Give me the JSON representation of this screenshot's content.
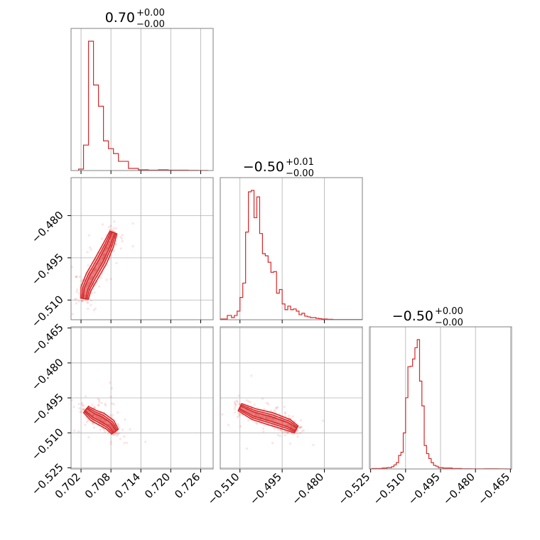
{
  "colors": {
    "series": "#d62728",
    "grid": "#b0b0b0",
    "frame": "#808080"
  },
  "chart_data": {
    "type": "corner",
    "grid": true,
    "parameters": [
      {
        "title_value": "0.70",
        "title_plus": "+0.00",
        "title_minus": "−0.00",
        "range": [
          0.7,
          0.7285
        ],
        "ticks": [
          0.702,
          0.708,
          0.714,
          0.72,
          0.726
        ],
        "tick_labels": [
          "0.702",
          "0.708",
          "0.714",
          "0.720",
          "0.726"
        ]
      },
      {
        "title_value": "−0.50",
        "title_plus": "+0.01",
        "title_minus": "−0.00",
        "range": [
          -0.517,
          -0.4665
        ],
        "ticks": [
          -0.51,
          -0.495,
          -0.48
        ],
        "tick_labels": [
          "−0.510",
          "−0.495",
          "−0.480"
        ]
      },
      {
        "title_value": "−0.50",
        "title_plus": "+0.00",
        "title_minus": "−0.00",
        "range": [
          -0.5255,
          -0.4645
        ],
        "ticks": [
          -0.525,
          -0.51,
          -0.495,
          -0.48,
          -0.465
        ],
        "tick_labels": [
          "−0.525",
          "−0.510",
          "−0.495",
          "−0.480",
          "−0.465"
        ]
      }
    ],
    "histograms": [
      {
        "param": 0,
        "bin_edges": [
          0.7015,
          0.7025,
          0.7035,
          0.7045,
          0.7055,
          0.7065,
          0.7075,
          0.7085,
          0.7095,
          0.7115,
          0.7135,
          0.7155,
          0.7175,
          0.7195,
          0.7215,
          0.7235,
          0.7255,
          0.7275
        ],
        "counts": [
          2,
          36,
          183,
          121,
          91,
          42,
          31,
          24,
          13,
          3,
          1,
          0.5,
          1,
          0.5,
          0.5,
          0.3,
          0.2
        ]
      },
      {
        "param": 1,
        "bin_edges": [
          -0.517,
          -0.5145,
          -0.513,
          -0.512,
          -0.511,
          -0.51,
          -0.509,
          -0.508,
          -0.507,
          -0.506,
          -0.505,
          -0.504,
          -0.503,
          -0.502,
          -0.501,
          -0.5,
          -0.499,
          -0.498,
          -0.497,
          -0.496,
          -0.495,
          -0.494,
          -0.493,
          -0.492,
          -0.491,
          -0.49,
          -0.489,
          -0.488,
          -0.487,
          -0.486,
          -0.485,
          -0.484,
          -0.483,
          -0.482,
          -0.481,
          -0.479,
          -0.477,
          -0.4665
        ],
        "counts": [
          1,
          6,
          3,
          6,
          12,
          31,
          51,
          122,
          178,
          180,
          142,
          171,
          120,
          92,
          89,
          80,
          66,
          67,
          37,
          42,
          22,
          14,
          19,
          14,
          15,
          12,
          7,
          9,
          5,
          4,
          3,
          3,
          2,
          1.5,
          1,
          0.6,
          0.3
        ]
      },
      {
        "param": 2,
        "bin_edges": [
          -0.5245,
          -0.52,
          -0.518,
          -0.516,
          -0.515,
          -0.514,
          -0.513,
          -0.512,
          -0.511,
          -0.51,
          -0.509,
          -0.508,
          -0.507,
          -0.506,
          -0.505,
          -0.504,
          -0.503,
          -0.502,
          -0.501,
          -0.5,
          -0.499,
          -0.498,
          -0.497,
          -0.496,
          -0.495,
          -0.494,
          -0.492,
          -0.49,
          -0.488,
          -0.486,
          -0.484,
          -0.482,
          -0.48,
          -0.476,
          -0.47,
          -0.467,
          -0.4645
        ],
        "counts": [
          1,
          2,
          3,
          5,
          9,
          14,
          30,
          37,
          80,
          158,
          227,
          228,
          244,
          269,
          287,
          195,
          140,
          52,
          34,
          23,
          14,
          8,
          6,
          3,
          3,
          2,
          2,
          1,
          1,
          0.5,
          0.5,
          0.3,
          0.2,
          0.4,
          0.2,
          0
        ]
      }
    ],
    "scatter_2d": [
      {
        "x_param": 0,
        "y_param": 1,
        "contour_centerline": [
          [
            0.7027,
            -0.5095
          ],
          [
            0.703,
            -0.506
          ],
          [
            0.7042,
            -0.5015
          ],
          [
            0.706,
            -0.496
          ],
          [
            0.7075,
            -0.4905
          ],
          [
            0.7085,
            -0.486
          ]
        ],
        "contour_levels": 3
      },
      {
        "x_param": 0,
        "y_param": 2,
        "contour_centerline": [
          [
            0.703,
            -0.5
          ],
          [
            0.7045,
            -0.5025
          ],
          [
            0.706,
            -0.504
          ],
          [
            0.7078,
            -0.5065
          ],
          [
            0.7088,
            -0.5095
          ]
        ],
        "contour_levels": 3
      },
      {
        "x_param": 1,
        "y_param": 2,
        "contour_centerline": [
          [
            -0.51,
            -0.499
          ],
          [
            -0.505,
            -0.502
          ],
          [
            -0.499,
            -0.504
          ],
          [
            -0.493,
            -0.5065
          ],
          [
            -0.49,
            -0.5085
          ]
        ],
        "contour_levels": 3
      }
    ]
  }
}
